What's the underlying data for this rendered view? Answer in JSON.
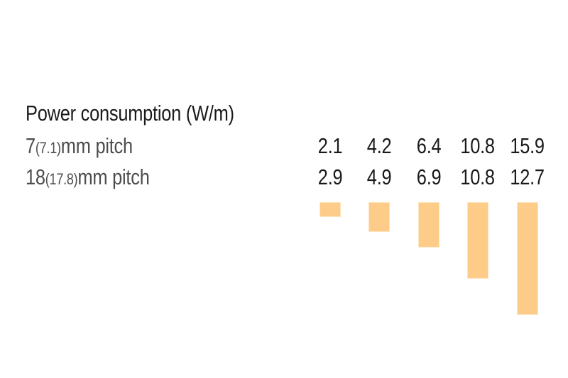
{
  "colors": {
    "background": "#ffffff",
    "title_text": "#1a1a1a",
    "label_text": "#4d4d4d",
    "value_text": "#1a1a1a",
    "bar_fill": "#fdcc88",
    "bar_edge": "#fee5be"
  },
  "row_labels": [
    {
      "prefix": "7",
      "paren": "(7.1)",
      "suffix": "mm pitch"
    },
    {
      "prefix": "18",
      "paren": "(17.8)",
      "suffix": "mm pitch"
    }
  ],
  "chart_data": {
    "type": "bar",
    "title": "Power consumption (W/m)",
    "num_columns": 5,
    "series": [
      {
        "name": "7(7.1)mm pitch",
        "values": [
          2.1,
          4.2,
          6.4,
          10.8,
          15.9
        ]
      },
      {
        "name": "18(17.8)mm pitch",
        "values": [
          2.9,
          4.9,
          6.9,
          10.8,
          12.7
        ]
      }
    ],
    "bars": {
      "series": "7(7.1)mm pitch",
      "values": [
        2.1,
        4.2,
        6.4,
        10.8,
        15.9
      ],
      "direction": "down",
      "pixels_per_unit": 10
    },
    "xlabel": "",
    "ylabel": "",
    "grid": false,
    "legend_position": "row-labels-left",
    "value_labels_shown": true
  }
}
